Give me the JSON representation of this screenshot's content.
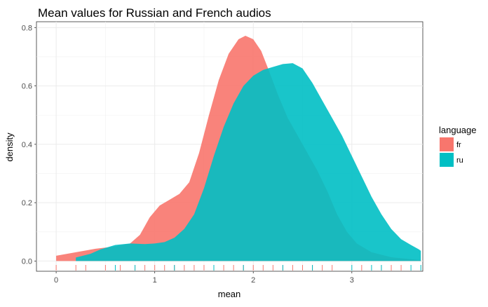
{
  "chart_data": {
    "type": "area",
    "title": "Mean values for Russian and French audios",
    "xlabel": "mean",
    "ylabel": "density",
    "xlim": [
      -0.2,
      3.72
    ],
    "ylim": [
      -0.035,
      0.82
    ],
    "x_ticks": [
      0,
      1,
      2,
      3
    ],
    "y_ticks": [
      0.0,
      0.2,
      0.4,
      0.6,
      0.8
    ],
    "x_tick_labels": [
      "0",
      "1",
      "2",
      "3"
    ],
    "y_tick_labels": [
      "0.0",
      "0.2",
      "0.4",
      "0.6",
      "0.8"
    ],
    "grid": true,
    "legend": {
      "title": "language",
      "placement": "right"
    },
    "series": [
      {
        "name": "fr",
        "color": "#F8766D",
        "points": [
          [
            0.0,
            0.018
          ],
          [
            0.2,
            0.03
          ],
          [
            0.4,
            0.042
          ],
          [
            0.6,
            0.05
          ],
          [
            0.75,
            0.06
          ],
          [
            0.85,
            0.09
          ],
          [
            0.95,
            0.15
          ],
          [
            1.05,
            0.19
          ],
          [
            1.15,
            0.21
          ],
          [
            1.25,
            0.23
          ],
          [
            1.35,
            0.27
          ],
          [
            1.45,
            0.37
          ],
          [
            1.55,
            0.5
          ],
          [
            1.65,
            0.62
          ],
          [
            1.75,
            0.71
          ],
          [
            1.85,
            0.76
          ],
          [
            1.92,
            0.772
          ],
          [
            2.0,
            0.76
          ],
          [
            2.08,
            0.72
          ],
          [
            2.15,
            0.66
          ],
          [
            2.25,
            0.57
          ],
          [
            2.35,
            0.49
          ],
          [
            2.45,
            0.43
          ],
          [
            2.55,
            0.37
          ],
          [
            2.65,
            0.31
          ],
          [
            2.75,
            0.24
          ],
          [
            2.85,
            0.16
          ],
          [
            2.95,
            0.1
          ],
          [
            3.05,
            0.06
          ],
          [
            3.2,
            0.03
          ],
          [
            3.4,
            0.013
          ],
          [
            3.7,
            0.003
          ]
        ],
        "rug": [
          0.0,
          0.2,
          0.3,
          0.5,
          0.65,
          0.8,
          0.9,
          1.0,
          1.1,
          1.2,
          1.3,
          1.4,
          1.5,
          1.6,
          1.7,
          1.8,
          1.9,
          2.0,
          2.1,
          2.2,
          2.3,
          2.4,
          2.5,
          2.6,
          2.7,
          2.8,
          3.1,
          3.3,
          3.4,
          3.5
        ]
      },
      {
        "name": "ru",
        "color": "#00BFC4",
        "points": [
          [
            0.2,
            0.012
          ],
          [
            0.35,
            0.025
          ],
          [
            0.45,
            0.04
          ],
          [
            0.6,
            0.055
          ],
          [
            0.75,
            0.06
          ],
          [
            0.9,
            0.058
          ],
          [
            1.0,
            0.06
          ],
          [
            1.1,
            0.065
          ],
          [
            1.2,
            0.08
          ],
          [
            1.3,
            0.11
          ],
          [
            1.4,
            0.16
          ],
          [
            1.5,
            0.25
          ],
          [
            1.6,
            0.36
          ],
          [
            1.7,
            0.46
          ],
          [
            1.8,
            0.54
          ],
          [
            1.9,
            0.6
          ],
          [
            2.0,
            0.635
          ],
          [
            2.1,
            0.655
          ],
          [
            2.2,
            0.665
          ],
          [
            2.3,
            0.675
          ],
          [
            2.4,
            0.678
          ],
          [
            2.5,
            0.66
          ],
          [
            2.6,
            0.61
          ],
          [
            2.7,
            0.55
          ],
          [
            2.8,
            0.49
          ],
          [
            2.9,
            0.43
          ],
          [
            3.0,
            0.36
          ],
          [
            3.1,
            0.29
          ],
          [
            3.2,
            0.22
          ],
          [
            3.3,
            0.16
          ],
          [
            3.4,
            0.11
          ],
          [
            3.5,
            0.075
          ],
          [
            3.6,
            0.055
          ],
          [
            3.68,
            0.04
          ],
          [
            3.7,
            0.035
          ]
        ],
        "rug": [
          0.6,
          0.8,
          1.2,
          1.6,
          1.9,
          2.3,
          2.6,
          3.0,
          3.2,
          3.3,
          3.6,
          3.7
        ]
      }
    ]
  }
}
